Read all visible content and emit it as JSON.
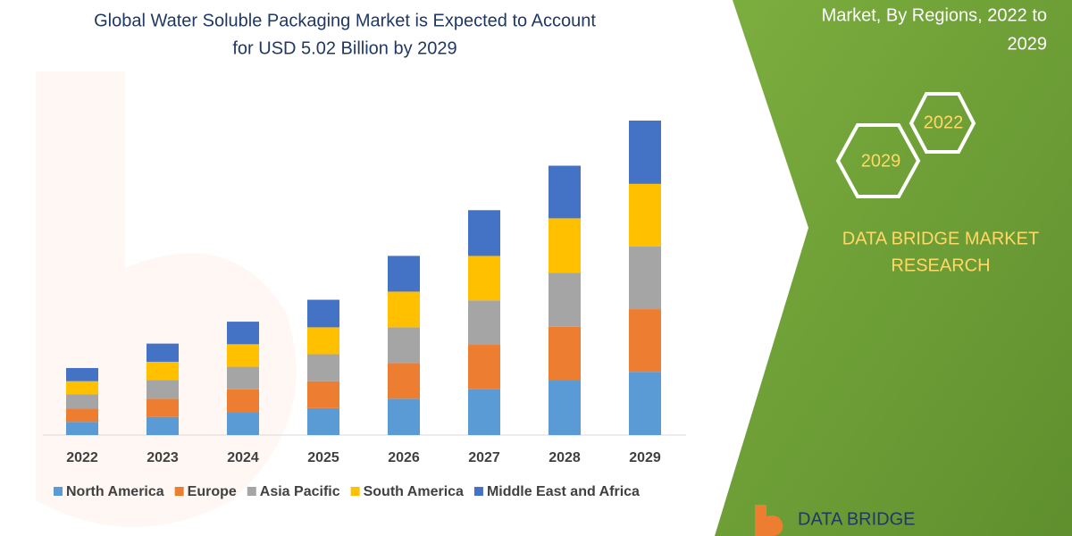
{
  "chart_data": {
    "type": "stacked-bar",
    "title_lines": [
      "Global Water Soluble Packaging Market is Expected to Account",
      "for USD 5.02 Billion by 2029"
    ],
    "categories": [
      "2022",
      "2023",
      "2024",
      "2025",
      "2026",
      "2027",
      "2028",
      "2029"
    ],
    "series": [
      {
        "name": "North America",
        "color": "#5b9bd5",
        "values": [
          0.21,
          0.29,
          0.37,
          0.43,
          0.58,
          0.73,
          0.87,
          1.01
        ]
      },
      {
        "name": "Europe",
        "color": "#ed7d31",
        "values": [
          0.21,
          0.29,
          0.36,
          0.43,
          0.57,
          0.71,
          0.86,
          1.0
        ]
      },
      {
        "name": "Asia Pacific",
        "color": "#a5a5a5",
        "values": [
          0.23,
          0.3,
          0.36,
          0.43,
          0.57,
          0.71,
          0.86,
          1.0
        ]
      },
      {
        "name": "South America",
        "color": "#ffc000",
        "values": [
          0.21,
          0.29,
          0.36,
          0.43,
          0.57,
          0.71,
          0.87,
          1.0
        ]
      },
      {
        "name": "Middle East and Africa",
        "color": "#4472c4",
        "values": [
          0.21,
          0.29,
          0.36,
          0.44,
          0.57,
          0.73,
          0.84,
          1.01
        ]
      }
    ],
    "ylim": [
      0,
      5.02
    ],
    "grid": false,
    "legend": "bottom"
  },
  "panel": {
    "heading_lines": [
      "Market, By Regions, 2022 to",
      "2029"
    ],
    "hexagons": [
      "2022",
      "2029"
    ],
    "brand_lines": [
      "DATA BRIDGE MARKET",
      "RESEARCH"
    ],
    "logo": "DATA BRIDGE"
  }
}
